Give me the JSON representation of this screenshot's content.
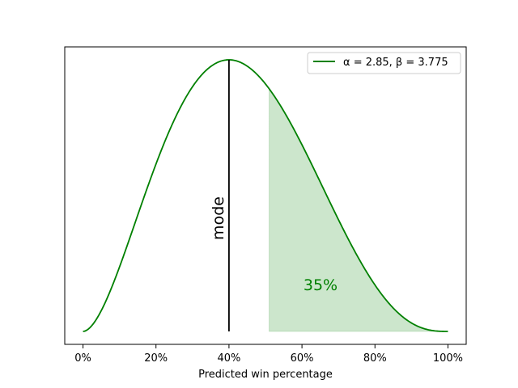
{
  "chart_data": {
    "type": "line",
    "title": "",
    "xlabel": "Predicted win percentage",
    "ylabel": "",
    "xlim": [
      -0.05,
      1.05
    ],
    "xticks": [
      0,
      0.2,
      0.4,
      0.6,
      0.8,
      1.0
    ],
    "xtick_labels": [
      "0%",
      "20%",
      "40%",
      "60%",
      "80%",
      "100%"
    ],
    "yticks_shown": false,
    "grid": false,
    "legend_position": "top-right",
    "series": [
      {
        "name": "α = 2.85, β = 3.775",
        "distribution": "beta",
        "alpha": 2.85,
        "beta": 3.775,
        "color": "#008000"
      }
    ],
    "mode_line": {
      "x": 0.4,
      "label": "mode",
      "color": "#000000"
    },
    "shaded_region": {
      "x_start": 0.51,
      "x_end": 1.0,
      "color": "#008000",
      "opacity": 0.2
    },
    "shaded_label": "35%"
  }
}
